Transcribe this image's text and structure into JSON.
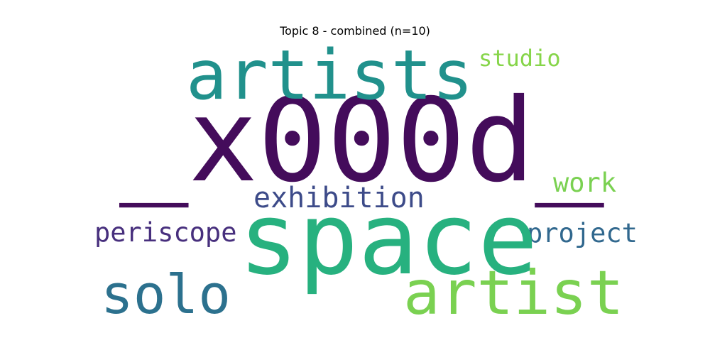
{
  "title": "Topic 8 - combined (n=10)",
  "words": {
    "x000d": {
      "text": "_x000d_",
      "color": "#440c5b"
    },
    "space": {
      "text": "space",
      "color": "#27b17f"
    },
    "artists": {
      "text": "artists",
      "color": "#21918c"
    },
    "artist": {
      "text": "artist",
      "color": "#7ad151"
    },
    "solo": {
      "text": "solo",
      "color": "#2c718e"
    },
    "exhibition": {
      "text": "exhibition",
      "color": "#3d4b89"
    },
    "periscope": {
      "text": "periscope",
      "color": "#472f7d"
    },
    "project": {
      "text": "project",
      "color": "#31688e"
    },
    "work": {
      "text": "work",
      "color": "#7ad151"
    },
    "studio": {
      "text": "studio",
      "color": "#86d549"
    }
  }
}
